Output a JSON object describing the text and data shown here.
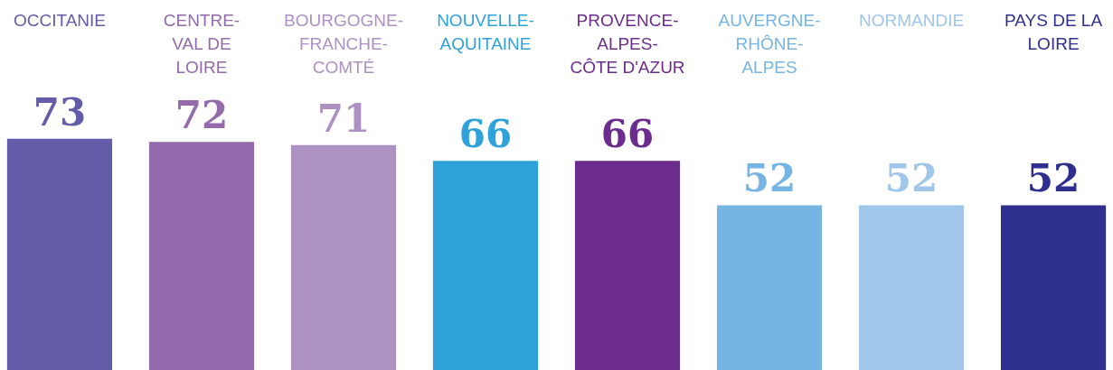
{
  "chart_data": {
    "type": "bar",
    "categories": [
      "OCCITANIE",
      "CENTRE-VAL DE LOIRE",
      "BOURGOGNE-FRANCHE-COMTÉ",
      "NOUVELLE-AQUITAINE",
      "PROVENCE-ALPES-CÔTE D'AZUR",
      "AUVERGNE-RHÔNE-ALPES",
      "NORMANDIE",
      "PAYS DE LA LOIRE"
    ],
    "values": [
      73,
      72,
      71,
      66,
      66,
      52,
      52,
      52
    ],
    "colors": [
      "#625ca9",
      "#936aab",
      "#ad91c3",
      "#2ea2da",
      "#6c2c8e",
      "#76b4e3",
      "#a0c6ea",
      "#2e2f8e"
    ],
    "data_labels": true
  }
}
